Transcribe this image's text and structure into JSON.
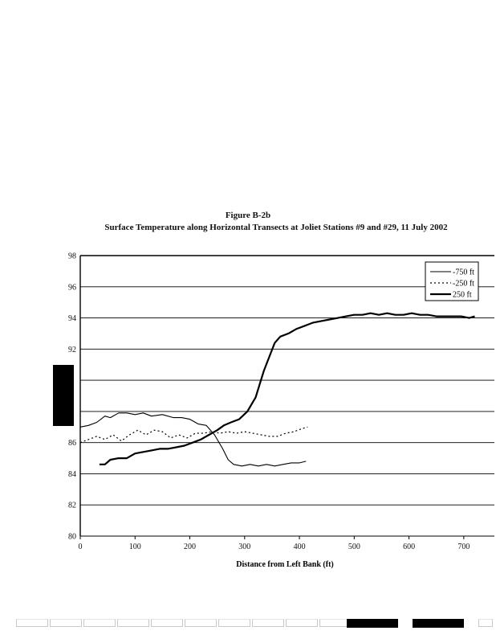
{
  "figure": {
    "number": "Figure B-2b",
    "title": "Surface Temperature along Horizontal Transects at Joliet Stations #9 and #29, 11 July 2002"
  },
  "chart_data": {
    "type": "line",
    "title": "Surface Temperature along Horizontal Transects at Joliet Stations #9 and #29, 11 July 2002",
    "xlabel": "Distance from Left Bank (ft)",
    "ylabel": "",
    "xlim": [
      0,
      750
    ],
    "ylim": [
      80,
      98
    ],
    "x_ticks": [
      0,
      100,
      200,
      300,
      400,
      500,
      600,
      700
    ],
    "y_ticks": [
      80,
      82,
      84,
      86,
      88,
      90,
      92,
      94,
      96,
      98
    ],
    "y_tick_labels": [
      "80",
      "82",
      "84",
      "86",
      "",
      "",
      "92",
      "94",
      "96",
      "98"
    ],
    "grid": "horizontal",
    "legend_position": "top-right",
    "series": [
      {
        "name": "-750 ft",
        "style": "solid",
        "x": [
          0,
          15,
          30,
          45,
          55,
          70,
          85,
          100,
          115,
          130,
          150,
          170,
          185,
          200,
          215,
          230,
          245,
          260,
          270,
          280,
          295,
          310,
          325,
          340,
          355,
          370,
          385,
          400,
          412
        ],
        "y": [
          87.0,
          87.1,
          87.3,
          87.7,
          87.6,
          87.9,
          87.9,
          87.8,
          87.9,
          87.7,
          87.8,
          87.6,
          87.6,
          87.5,
          87.2,
          87.1,
          86.5,
          85.6,
          84.9,
          84.6,
          84.5,
          84.6,
          84.5,
          84.6,
          84.5,
          84.6,
          84.7,
          84.7,
          84.8
        ]
      },
      {
        "name": "-250 ft",
        "style": "dotted",
        "x": [
          0,
          15,
          30,
          45,
          60,
          75,
          90,
          105,
          120,
          135,
          150,
          165,
          180,
          195,
          210,
          225,
          240,
          255,
          270,
          285,
          300,
          315,
          330,
          345,
          360,
          375,
          390,
          405,
          415
        ],
        "y": [
          86.0,
          86.2,
          86.4,
          86.2,
          86.5,
          86.1,
          86.5,
          86.8,
          86.5,
          86.8,
          86.7,
          86.3,
          86.5,
          86.3,
          86.6,
          86.6,
          86.7,
          86.6,
          86.7,
          86.6,
          86.7,
          86.6,
          86.5,
          86.4,
          86.4,
          86.6,
          86.7,
          86.9,
          87.0
        ]
      },
      {
        "name": "250 ft",
        "style": "solid",
        "x": [
          35,
          45,
          55,
          70,
          85,
          100,
          115,
          130,
          145,
          160,
          175,
          190,
          205,
          220,
          235,
          250,
          262,
          275,
          290,
          305,
          320,
          335,
          345,
          355,
          365,
          380,
          395,
          410,
          425,
          440,
          455,
          470,
          485,
          500,
          515,
          530,
          545,
          560,
          575,
          590,
          605,
          620,
          635,
          650,
          665,
          680,
          695,
          710,
          720
        ],
        "y": [
          84.6,
          84.6,
          84.9,
          85.0,
          85.0,
          85.3,
          85.4,
          85.5,
          85.6,
          85.6,
          85.7,
          85.8,
          86.0,
          86.2,
          86.5,
          86.8,
          87.1,
          87.3,
          87.5,
          88.0,
          88.9,
          90.6,
          91.5,
          92.4,
          92.8,
          93.0,
          93.3,
          93.5,
          93.7,
          93.8,
          93.9,
          94.0,
          94.1,
          94.2,
          94.2,
          94.3,
          94.2,
          94.3,
          94.2,
          94.2,
          94.3,
          94.2,
          94.2,
          94.1,
          94.1,
          94.1,
          94.1,
          94.0,
          94.1
        ]
      }
    ]
  }
}
